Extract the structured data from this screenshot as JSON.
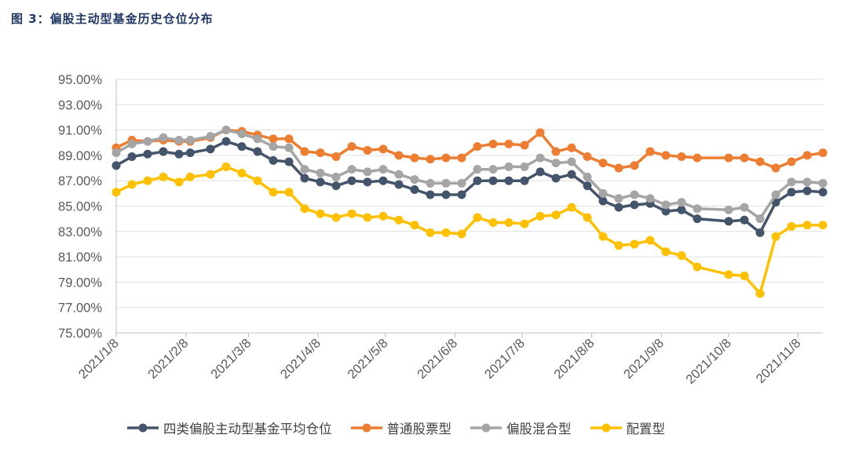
{
  "figure": {
    "title": "图 3：偏股主动型基金历史仓位分布"
  },
  "colors": {
    "avg": "#44546a",
    "stock": "#ed7d31",
    "mixed": "#a5a5a5",
    "alloc": "#ffc000",
    "grid": "#e0e0e0",
    "axis": "#bfbfbf"
  },
  "chart_data": {
    "type": "line",
    "title": "",
    "xlabel": "",
    "ylabel": "",
    "ylim": [
      75,
      95
    ],
    "yticks": [
      "75.00%",
      "77.00%",
      "79.00%",
      "81.00%",
      "83.00%",
      "85.00%",
      "87.00%",
      "89.00%",
      "91.00%",
      "93.00%",
      "95.00%"
    ],
    "yformat": "percent",
    "grid": true,
    "legend_position": "bottom",
    "xlim": [
      "2021-01-08",
      "2021-11-19"
    ],
    "x_tick_labels": [
      "2021/1/8",
      "2021/2/8",
      "2021/3/8",
      "2021/4/8",
      "2021/5/8",
      "2021/6/8",
      "2021/7/8",
      "2021/8/8",
      "2021/9/8",
      "2021/10/8",
      "2021/11/8"
    ],
    "x_tick_dates": [
      "2021-01-08",
      "2021-02-08",
      "2021-03-08",
      "2021-04-08",
      "2021-05-08",
      "2021-06-08",
      "2021-07-08",
      "2021-08-08",
      "2021-09-08",
      "2021-10-08",
      "2021-11-08"
    ],
    "x": [
      "2021-01-08",
      "2021-01-15",
      "2021-01-22",
      "2021-01-29",
      "2021-02-05",
      "2021-02-10",
      "2021-02-19",
      "2021-02-26",
      "2021-03-05",
      "2021-03-12",
      "2021-03-19",
      "2021-03-26",
      "2021-04-02",
      "2021-04-09",
      "2021-04-16",
      "2021-04-23",
      "2021-04-30",
      "2021-05-07",
      "2021-05-14",
      "2021-05-21",
      "2021-05-28",
      "2021-06-04",
      "2021-06-11",
      "2021-06-18",
      "2021-06-25",
      "2021-07-02",
      "2021-07-09",
      "2021-07-16",
      "2021-07-23",
      "2021-07-30",
      "2021-08-06",
      "2021-08-13",
      "2021-08-20",
      "2021-08-27",
      "2021-09-03",
      "2021-09-10",
      "2021-09-17",
      "2021-09-24",
      "2021-10-08",
      "2021-10-15",
      "2021-10-22",
      "2021-10-29",
      "2021-11-05",
      "2021-11-12",
      "2021-11-19"
    ],
    "series": [
      {
        "name": "四类偏股主动型基金平均仓位",
        "color_key": "avg",
        "values": [
          88.2,
          88.9,
          89.1,
          89.3,
          89.1,
          89.2,
          89.5,
          90.1,
          89.7,
          89.3,
          88.6,
          88.5,
          87.2,
          86.9,
          86.6,
          87.0,
          86.9,
          87.0,
          86.7,
          86.3,
          85.9,
          85.9,
          85.9,
          87.0,
          87.0,
          87.0,
          87.0,
          87.7,
          87.2,
          87.5,
          86.6,
          85.4,
          84.9,
          85.1,
          85.2,
          84.6,
          84.7,
          84.0,
          83.8,
          83.9,
          82.9,
          85.3,
          86.1,
          86.2,
          86.1
        ]
      },
      {
        "name": "普通股票型",
        "color_key": "stock",
        "values": [
          89.6,
          90.2,
          90.1,
          90.2,
          90.1,
          90.1,
          90.4,
          91.0,
          90.9,
          90.6,
          90.3,
          90.3,
          89.3,
          89.2,
          88.9,
          89.7,
          89.4,
          89.5,
          89.0,
          88.8,
          88.7,
          88.8,
          88.8,
          89.7,
          89.9,
          89.9,
          89.8,
          90.8,
          89.3,
          89.6,
          88.9,
          88.4,
          88.0,
          88.2,
          89.3,
          89.0,
          88.9,
          88.8,
          88.8,
          88.8,
          88.5,
          88.0,
          88.5,
          89.0,
          89.2
        ]
      },
      {
        "name": "偏股混合型",
        "color_key": "mixed",
        "values": [
          89.2,
          89.9,
          90.1,
          90.4,
          90.2,
          90.2,
          90.5,
          91.0,
          90.7,
          90.3,
          89.7,
          89.6,
          87.9,
          87.6,
          87.3,
          87.9,
          87.7,
          87.9,
          87.5,
          87.1,
          86.8,
          86.8,
          86.8,
          87.9,
          87.9,
          88.1,
          88.1,
          88.8,
          88.4,
          88.5,
          87.3,
          86.0,
          85.6,
          85.9,
          85.6,
          85.1,
          85.3,
          84.8,
          84.7,
          84.9,
          84.0,
          85.9,
          86.9,
          86.9,
          86.8
        ]
      },
      {
        "name": "配置型",
        "color_key": "alloc",
        "values": [
          86.1,
          86.7,
          87.0,
          87.3,
          86.9,
          87.3,
          87.5,
          88.1,
          87.6,
          87.0,
          86.1,
          86.1,
          84.8,
          84.4,
          84.1,
          84.4,
          84.1,
          84.2,
          83.9,
          83.5,
          82.9,
          82.9,
          82.8,
          84.1,
          83.7,
          83.7,
          83.6,
          84.2,
          84.3,
          84.9,
          84.1,
          82.6,
          81.9,
          82.0,
          82.3,
          81.4,
          81.1,
          80.2,
          79.6,
          79.5,
          78.1,
          82.6,
          83.4,
          83.5,
          83.5
        ]
      }
    ]
  }
}
